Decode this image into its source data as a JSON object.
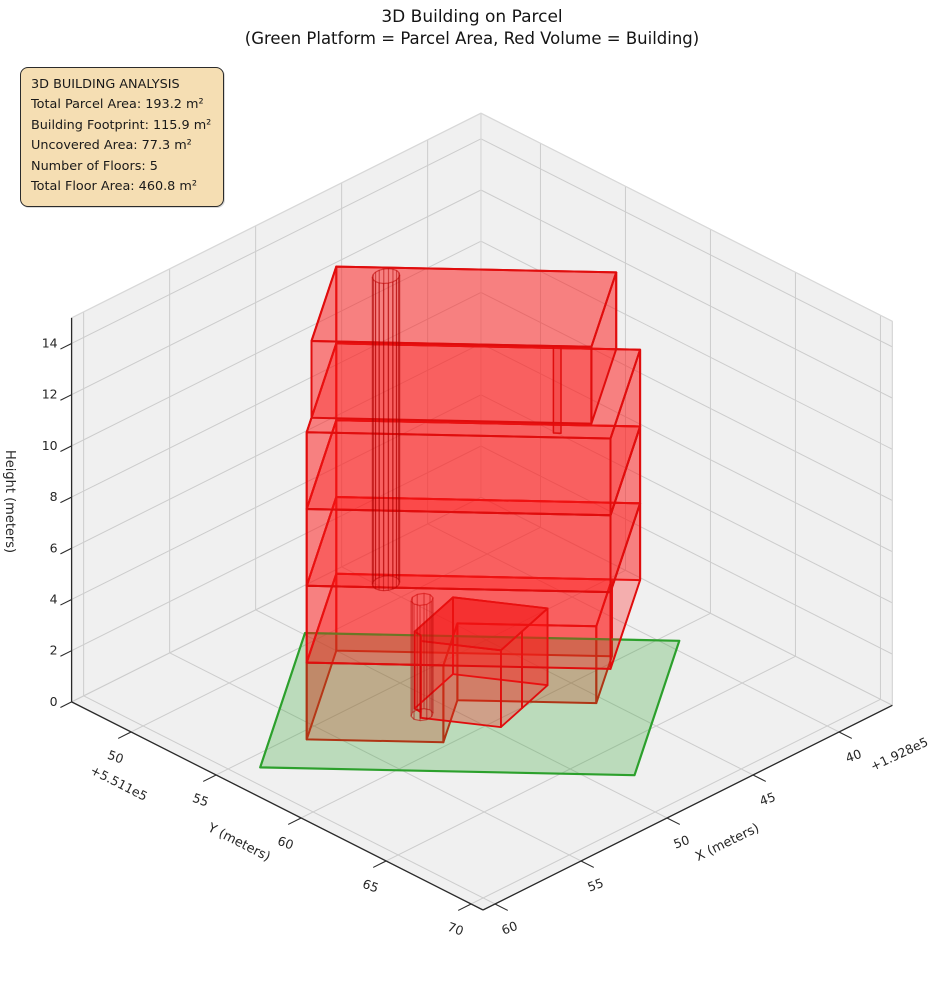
{
  "title": "3D Building on Parcel",
  "subtitle": "(Green Platform = Parcel Area, Red Volume = Building)",
  "info_box": {
    "heading": "3D BUILDING ANALYSIS",
    "lines": [
      "Total Parcel Area: 193.2 m²",
      "Building Footprint: 115.9 m²",
      "Uncovered Area: 77.3 m²",
      "Number of Floors: 5",
      "Total Floor Area: 460.8 m²"
    ]
  },
  "chart_data": {
    "type": "3d-building",
    "title": "3D Building on Parcel",
    "subtitle": "(Green Platform = Parcel Area, Red Volume = Building)",
    "stats": {
      "total_parcel_area_m2": 193.2,
      "building_footprint_m2": 115.9,
      "uncovered_area_m2": 77.3,
      "number_of_floors": 5,
      "total_floor_area_m2": 460.8,
      "floor_height_m": 3
    },
    "axes": {
      "x": {
        "label": "X (meters)",
        "ticks": [
          "40",
          "45",
          "50",
          "55",
          "60"
        ],
        "tick_values": [
          40,
          45,
          50,
          55,
          60
        ],
        "offset_text": "+1.928e5",
        "lim": [
          36.9,
          60.7
        ]
      },
      "y": {
        "label": "Y (meters)",
        "ticks": [
          "50",
          "55",
          "60",
          "65",
          "70"
        ],
        "tick_values": [
          50,
          55,
          60,
          65,
          70
        ],
        "offset_text": "+5.511e5",
        "lim": [
          46.5,
          70.7
        ]
      },
      "z": {
        "label": "Height (meters)",
        "ticks": [
          "0",
          "2",
          "4",
          "6",
          "8",
          "10",
          "12",
          "14"
        ],
        "tick_values": [
          0,
          2,
          4,
          6,
          8,
          10,
          12,
          14
        ],
        "lim": [
          0,
          15
        ]
      }
    },
    "projection": {
      "data": {
        "px0": 483,
        "kx": -17.2,
        "ky": 17.0,
        "py0": 910,
        "jx": 8.6,
        "jy": 8.6,
        "jz": -25.6,
        "ox": 60.7,
        "oy": 70.7
      },
      "local": {
        "px0": 305,
        "pa": -4.0,
        "pb": 21.7,
        "py0": 633,
        "qa": 12.0,
        "qb": 0.45,
        "qz": -25.6
      }
    },
    "parcel": {
      "polygon_local": [
        [
          0,
          0
        ],
        [
          11.2,
          0
        ],
        [
          11.2,
          17.25
        ],
        [
          0,
          17.25
        ]
      ],
      "z": 0,
      "fill": "rgba(46,164,46,0.27)",
      "edge": "#2ca02c"
    },
    "building": {
      "edge": "#e00d0d",
      "face_fill": "rgba(255,23,23,0.30)",
      "floors": [
        {
          "name": "floor-1",
          "z0": 0,
          "z1": 3,
          "polygon": [
            [
              1.4,
              1.7
            ],
            [
              8.8,
              1.7
            ],
            [
              8.8,
              8.0
            ],
            [
              5.3,
              8.0
            ],
            [
              5.3,
              14.4
            ],
            [
              1.4,
              14.4
            ]
          ]
        },
        {
          "name": "floor-2",
          "z0": 3,
          "z1": 6,
          "polygon": [
            [
              1.4,
              1.7
            ],
            [
              8.8,
              1.7
            ],
            [
              8.8,
              15.7
            ],
            [
              1.4,
              15.7
            ]
          ]
        },
        {
          "name": "floor-3",
          "z0": 6,
          "z1": 9,
          "polygon": [
            [
              1.4,
              1.7
            ],
            [
              8.8,
              1.7
            ],
            [
              8.8,
              15.7
            ],
            [
              1.4,
              15.7
            ]
          ]
        },
        {
          "name": "floor-4",
          "z0": 9,
          "z1": 12,
          "polygon": [
            [
              1.4,
              1.7
            ],
            [
              8.8,
              1.7
            ],
            [
              8.8,
              15.7
            ],
            [
              1.4,
              15.7
            ]
          ]
        },
        {
          "name": "floor-5",
          "z0": 12,
          "z1": 15,
          "polygon": [
            [
              1.4,
              1.7
            ],
            [
              7.6,
              1.7
            ],
            [
              7.6,
              14.6
            ],
            [
              1.4,
              14.6
            ]
          ]
        }
      ],
      "front_box": {
        "z0": 0,
        "z1": 3,
        "top_fill": "rgba(230,15,15,0.42)",
        "polygon": [
          [
            7.45,
            10.4
          ],
          [
            5.85,
            11.08
          ],
          [
            3.9,
            11.9
          ],
          [
            3.15,
            7.4
          ],
          [
            6.06,
            6.17
          ],
          [
            6.36,
            6.51
          ],
          [
            6.82,
            6.59
          ]
        ]
      },
      "core_cylinder": {
        "center": [
          2.1,
          4.12
        ],
        "radius": 0.62,
        "z0": 3.0,
        "z1": 15,
        "segments": 18,
        "stroke": "rgba(175,0,0,0.5)"
      },
      "corner_cylinder": {
        "center": [
          6.55,
          6.6
        ],
        "radius": 0.5,
        "z0": 0,
        "z1": 4.5,
        "segments": 10,
        "stroke": "rgba(165,0,0,0.5)"
      },
      "facade_slot": {
        "a_plane": 7.6,
        "b0": 12.85,
        "b1": 13.2,
        "z0": 11.6,
        "z1": 15,
        "fill": "rgba(230,20,20,0.22)"
      }
    },
    "style": {
      "pane_fill": "#f0f0f0",
      "pane_edge": "#d8d8d8",
      "grid": "#cccccc",
      "spine": "#2a2a2a",
      "tick_text": "#262626",
      "background": "#ffffff"
    }
  }
}
